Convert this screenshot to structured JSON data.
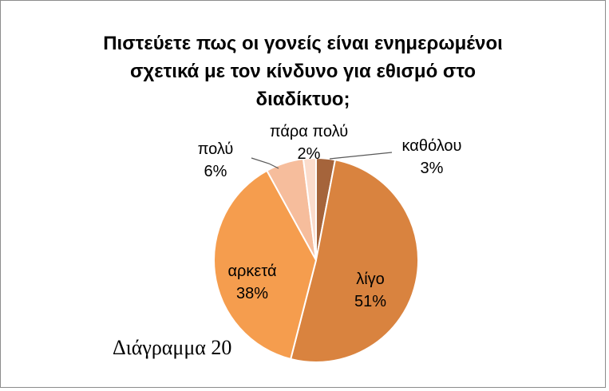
{
  "chart_data": {
    "type": "pie",
    "title": "Πιστεύετε πως οι γονείς είναι ενημερωμένοι\nσχετικά  με τον κίνδυνο για εθισμό στο\nδιαδίκτυο;",
    "slices": [
      {
        "label": "καθόλου",
        "value": 3,
        "pct_label": "3%",
        "color": "#a5643b"
      },
      {
        "label": "λίγο",
        "value": 51,
        "pct_label": "51%",
        "color": "#d9833f"
      },
      {
        "label": "αρκετά",
        "value": 38,
        "pct_label": "38%",
        "color": "#f59d4e"
      },
      {
        "label": "πολύ",
        "value": 6,
        "pct_label": "6%",
        "color": "#f6bd9c"
      },
      {
        "label": "πάρα πολύ",
        "value": 2,
        "pct_label": "2%",
        "color": "#fbdccc"
      }
    ],
    "legend": "none"
  },
  "caption": "Διάγραμμα 20"
}
